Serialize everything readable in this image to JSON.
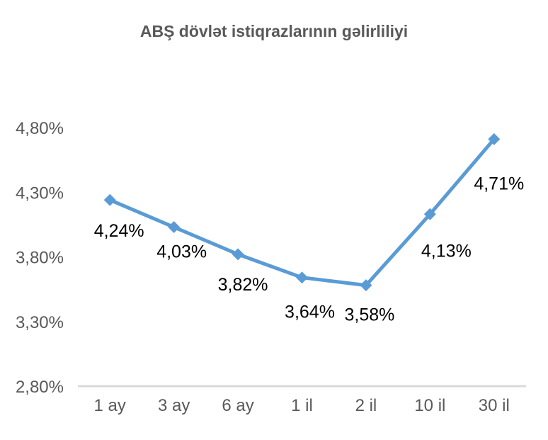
{
  "chart_data": {
    "type": "line",
    "title": "ABŞ dövlət istiqrazlarının gəlirliliyi",
    "categories": [
      "1 ay",
      "3 ay",
      "6 ay",
      "1 il",
      "2 il",
      "10 il",
      "30 il"
    ],
    "values": [
      4.24,
      4.03,
      3.82,
      3.64,
      3.58,
      4.13,
      4.71
    ],
    "data_labels": [
      "4,24%",
      "4,03%",
      "3,82%",
      "3,64%",
      "3,58%",
      "4,13%",
      "4,71%"
    ],
    "xlabel": "",
    "ylabel": "",
    "y_axis": {
      "tick_labels": [
        "4,80%",
        "4,30%",
        "3,80%",
        "3,30%",
        "2,80%"
      ],
      "tick_values": [
        4.8,
        4.3,
        3.8,
        3.3,
        2.8
      ],
      "min": 2.8,
      "max": 4.8
    },
    "grid": false,
    "legend": "none",
    "marker": "diamond",
    "colors": {
      "series": "#5B9BD5",
      "axis_line": "#D9D9D9",
      "axis_text": "#595959",
      "title_text": "#595959",
      "data_label_text": "#000000",
      "background": "#FFFFFF"
    }
  }
}
